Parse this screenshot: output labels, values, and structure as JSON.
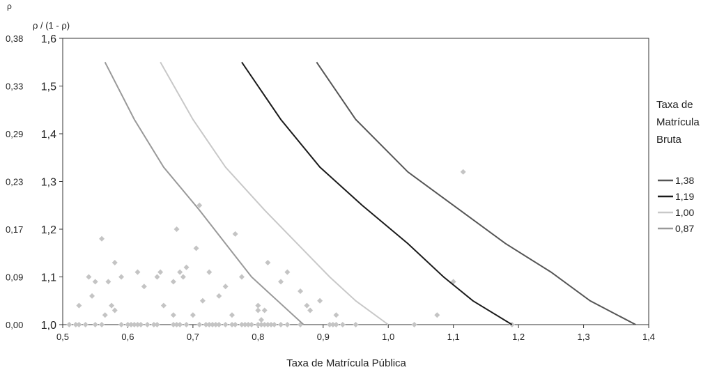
{
  "chart_data": {
    "type": "scatter",
    "title": "",
    "xlabel": "Taxa de Matrícula Pública",
    "ylabel": "ρ / (1 - ρ)",
    "y2label": "ρ",
    "xlim": [
      0.5,
      1.4
    ],
    "ylim": [
      1.0,
      1.6
    ],
    "xticks": [
      "0,5",
      "0,6",
      "0,7",
      "0,8",
      "0,9",
      "1,0",
      "1,1",
      "1,2",
      "1,3",
      "1,4"
    ],
    "yticks": [
      "1,0",
      "1,1",
      "1,2",
      "1,3",
      "1,4",
      "1,5",
      "1,6"
    ],
    "rho_ticks": [
      {
        "label": "0,00",
        "at": 1.0
      },
      {
        "label": "0,09",
        "at": 1.1
      },
      {
        "label": "0,17",
        "at": 1.2
      },
      {
        "label": "0,23",
        "at": 1.3
      },
      {
        "label": "0,29",
        "at": 1.4
      },
      {
        "label": "0,33",
        "at": 1.5
      },
      {
        "label": "0,38",
        "at": 1.6
      }
    ],
    "grid": false,
    "legend": {
      "title": "Taxa de Matrícula Bruta",
      "position": "right"
    },
    "series": [
      {
        "name": "1,38",
        "color": "#555555",
        "width": 2,
        "points": [
          [
            0.89,
            1.55
          ],
          [
            0.95,
            1.43
          ],
          [
            1.03,
            1.32
          ],
          [
            1.11,
            1.24
          ],
          [
            1.18,
            1.17
          ],
          [
            1.25,
            1.11
          ],
          [
            1.31,
            1.05
          ],
          [
            1.38,
            1.0
          ]
        ]
      },
      {
        "name": "1,19",
        "color": "#1a1a1a",
        "width": 2,
        "points": [
          [
            0.775,
            1.55
          ],
          [
            0.835,
            1.43
          ],
          [
            0.895,
            1.33
          ],
          [
            0.96,
            1.25
          ],
          [
            1.03,
            1.17
          ],
          [
            1.085,
            1.1
          ],
          [
            1.13,
            1.05
          ],
          [
            1.19,
            1.0
          ]
        ]
      },
      {
        "name": "1,00",
        "color": "#c8c8c8",
        "width": 2,
        "points": [
          [
            0.65,
            1.55
          ],
          [
            0.7,
            1.43
          ],
          [
            0.75,
            1.33
          ],
          [
            0.81,
            1.24
          ],
          [
            0.86,
            1.17
          ],
          [
            0.91,
            1.1
          ],
          [
            0.95,
            1.05
          ],
          [
            1.0,
            1.0
          ]
        ]
      },
      {
        "name": "0,87",
        "color": "#999999",
        "width": 2,
        "points": [
          [
            0.565,
            1.55
          ],
          [
            0.61,
            1.43
          ],
          [
            0.655,
            1.33
          ],
          [
            0.71,
            1.24
          ],
          [
            0.75,
            1.17
          ],
          [
            0.79,
            1.1
          ],
          [
            0.83,
            1.05
          ],
          [
            0.87,
            1.0
          ]
        ]
      }
    ],
    "scatter": {
      "name": "",
      "color": "#c4c4c4",
      "points": [
        [
          0.51,
          1.0
        ],
        [
          0.52,
          1.0
        ],
        [
          0.525,
          1.0
        ],
        [
          0.535,
          1.0
        ],
        [
          0.55,
          1.0
        ],
        [
          0.56,
          1.0
        ],
        [
          0.59,
          1.0
        ],
        [
          0.6,
          1.0
        ],
        [
          0.605,
          1.0
        ],
        [
          0.61,
          1.0
        ],
        [
          0.615,
          1.0
        ],
        [
          0.62,
          1.0
        ],
        [
          0.63,
          1.0
        ],
        [
          0.64,
          1.0
        ],
        [
          0.645,
          1.0
        ],
        [
          0.67,
          1.0
        ],
        [
          0.675,
          1.0
        ],
        [
          0.68,
          1.0
        ],
        [
          0.69,
          1.0
        ],
        [
          0.71,
          1.0
        ],
        [
          0.72,
          1.0
        ],
        [
          0.725,
          1.0
        ],
        [
          0.73,
          1.0
        ],
        [
          0.735,
          1.0
        ],
        [
          0.74,
          1.0
        ],
        [
          0.75,
          1.0
        ],
        [
          0.76,
          1.0
        ],
        [
          0.765,
          1.0
        ],
        [
          0.775,
          1.0
        ],
        [
          0.78,
          1.0
        ],
        [
          0.785,
          1.0
        ],
        [
          0.79,
          1.0
        ],
        [
          0.8,
          1.0
        ],
        [
          0.805,
          1.0
        ],
        [
          0.81,
          1.0
        ],
        [
          0.815,
          1.0
        ],
        [
          0.82,
          1.0
        ],
        [
          0.825,
          1.0
        ],
        [
          0.835,
          1.0
        ],
        [
          0.845,
          1.0
        ],
        [
          0.865,
          1.0
        ],
        [
          0.91,
          1.0
        ],
        [
          0.915,
          1.0
        ],
        [
          0.92,
          1.0
        ],
        [
          0.93,
          1.0
        ],
        [
          0.95,
          1.0
        ],
        [
          1.04,
          1.0
        ],
        [
          1.19,
          1.0
        ],
        [
          0.525,
          1.04
        ],
        [
          0.54,
          1.1
        ],
        [
          0.545,
          1.06
        ],
        [
          0.55,
          1.09
        ],
        [
          0.56,
          1.18
        ],
        [
          0.565,
          1.02
        ],
        [
          0.57,
          1.09
        ],
        [
          0.575,
          1.04
        ],
        [
          0.58,
          1.03
        ],
        [
          0.58,
          1.13
        ],
        [
          0.59,
          1.1
        ],
        [
          0.615,
          1.11
        ],
        [
          0.625,
          1.08
        ],
        [
          0.645,
          1.1
        ],
        [
          0.65,
          1.11
        ],
        [
          0.655,
          1.04
        ],
        [
          0.67,
          1.02
        ],
        [
          0.67,
          1.09
        ],
        [
          0.675,
          1.2
        ],
        [
          0.685,
          1.1
        ],
        [
          0.68,
          1.11
        ],
        [
          0.69,
          1.12
        ],
        [
          0.7,
          1.02
        ],
        [
          0.705,
          1.16
        ],
        [
          0.71,
          1.25
        ],
        [
          0.715,
          1.05
        ],
        [
          0.725,
          1.11
        ],
        [
          0.74,
          1.06
        ],
        [
          0.75,
          1.08
        ],
        [
          0.76,
          1.02
        ],
        [
          0.765,
          1.19
        ],
        [
          0.775,
          1.1
        ],
        [
          0.8,
          1.04
        ],
        [
          0.8,
          1.03
        ],
        [
          0.805,
          1.01
        ],
        [
          0.81,
          1.03
        ],
        [
          0.815,
          1.13
        ],
        [
          0.835,
          1.09
        ],
        [
          0.845,
          1.11
        ],
        [
          0.865,
          1.07
        ],
        [
          0.875,
          1.04
        ],
        [
          0.88,
          1.03
        ],
        [
          0.895,
          1.05
        ],
        [
          0.92,
          1.02
        ],
        [
          1.075,
          1.02
        ],
        [
          1.1,
          1.09
        ],
        [
          1.115,
          1.32
        ]
      ]
    }
  }
}
